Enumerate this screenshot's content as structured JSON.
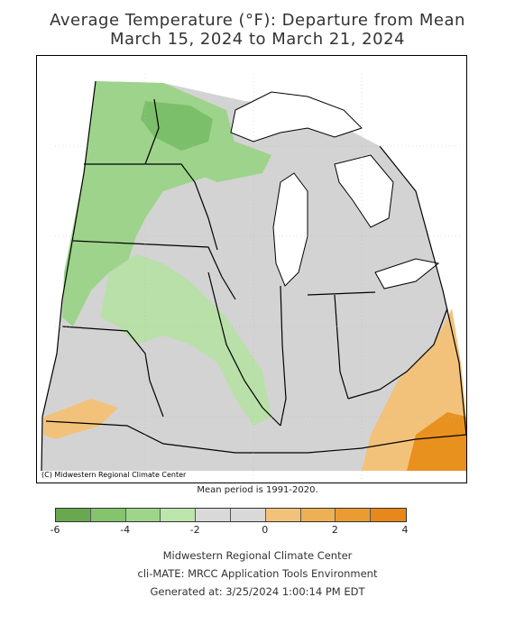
{
  "title": {
    "line1": "Average Temperature (°F): Departure from Mean",
    "line2": "March 15, 2024 to March 21, 2024"
  },
  "map": {
    "credit": "(C) Midwestern Regional Climate Center",
    "mean_period": "Mean period is 1991-2020.",
    "colors": {
      "water": "#ffffff",
      "neutral": "#d3d3d3",
      "green_light": "#b8e0a8",
      "green_mid": "#9dd38b",
      "green_dark": "#7cbf6a",
      "orange_light": "#f2c27a",
      "orange_mid": "#eda548",
      "orange_dark": "#e8911f"
    }
  },
  "legend": {
    "colors": [
      "#6aa84f",
      "#84c46c",
      "#9fd58b",
      "#bce6ab",
      "#d9d9d9",
      "#d9d9d9",
      "#f2c27a",
      "#eeb055",
      "#ea9c33",
      "#e8871a"
    ],
    "ticks": [
      {
        "label": "-6",
        "index": 0
      },
      {
        "label": "-4",
        "index": 2
      },
      {
        "label": "-2",
        "index": 4
      },
      {
        "label": "0",
        "index": 6
      },
      {
        "label": "2",
        "index": 8
      },
      {
        "label": "4",
        "index": 10
      }
    ]
  },
  "footer": {
    "line1": "Midwestern Regional Climate Center",
    "line2": "cli-MATE: MRCC Application Tools Environment",
    "line3": "Generated at: 3/25/2024 1:00:14 PM EDT"
  }
}
